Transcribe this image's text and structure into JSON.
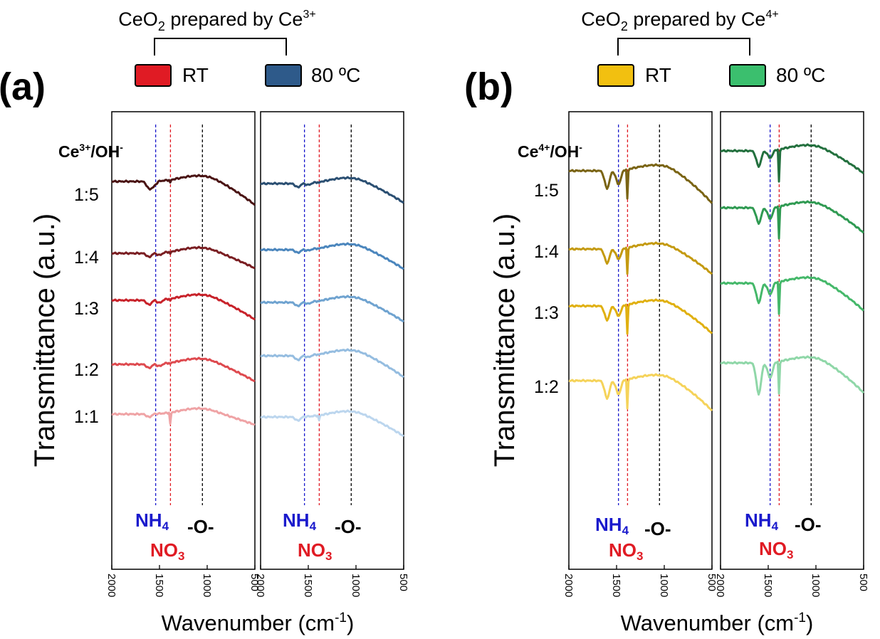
{
  "legend_a": {
    "title_main": "CeO",
    "title_sub": "2",
    "title_rest": " prepared by Ce",
    "title_sup": "3+",
    "items": [
      {
        "label": "RT",
        "color": "#e01b24"
      },
      {
        "label": "80 ºC",
        "color": "#2e5a8a"
      }
    ]
  },
  "legend_b": {
    "title_main": "CeO",
    "title_sub": "2",
    "title_rest": " prepared by Ce",
    "title_sup": "4+",
    "items": [
      {
        "label": "RT",
        "color": "#f2c010"
      },
      {
        "label": "80 ºC",
        "color": "#3bbf6e"
      }
    ]
  },
  "panel_a": {
    "letter": "(a)",
    "ratio_header_main": "Ce",
    "ratio_header_sup": "3+",
    "ratio_header_rest": "/OH",
    "ratio_header_sup2": "-",
    "ratios": [
      "1:5",
      "1:4",
      "1:3",
      "1:2",
      "1:1"
    ]
  },
  "panel_b": {
    "letter": "(b)",
    "ratio_header_main": "Ce",
    "ratio_header_sup": "4+",
    "ratio_header_rest": "/OH",
    "ratio_header_sup2": "-",
    "ratios": [
      "1:5",
      "1:4",
      "1:3",
      "1:2"
    ]
  },
  "peak_labels": {
    "nh4_main": "NH",
    "nh4_sub": "4",
    "no3_main": "NO",
    "no3_sub": "3",
    "oxo": "-O-",
    "nh4_color": "#1a1acc",
    "no3_color": "#e01b24",
    "oxo_color": "#000000"
  },
  "axes": {
    "ylabel": "Transmittance (a.u.)",
    "xlabel_main": "Wavenumber (cm",
    "xlabel_sup": "-1",
    "xlabel_end": ")",
    "xticks": [
      "2000",
      "1500",
      "1000",
      "500"
    ]
  },
  "chart_data": [
    {
      "type": "line",
      "panel": "a-left",
      "legend": "RT",
      "xlim": [
        2000,
        500
      ],
      "reference_lines": [
        {
          "x": 1540,
          "label": "NH4"
        },
        {
          "x": 1385,
          "label": "NO3"
        },
        {
          "x": 1050,
          "label": "-O-"
        }
      ],
      "series": [
        {
          "name": "1:5",
          "color": "#4a1414",
          "dips": [
            [
              1610,
              0.45
            ],
            [
              1560,
              0.3
            ],
            [
              1385,
              0.25
            ]
          ],
          "slope": 0.55
        },
        {
          "name": "1:4",
          "color": "#7a1e22",
          "dips": [
            [
              1610,
              0.25
            ],
            [
              1500,
              0.15
            ],
            [
              1385,
              0.2
            ]
          ],
          "slope": 0.35
        },
        {
          "name": "1:3",
          "color": "#c8222a",
          "dips": [
            [
              1610,
              0.3
            ],
            [
              1500,
              0.2
            ],
            [
              1385,
              0.2
            ]
          ],
          "slope": 0.45
        },
        {
          "name": "1:2",
          "color": "#de4a4f",
          "dips": [
            [
              1610,
              0.25
            ],
            [
              1500,
              0.15
            ],
            [
              1385,
              0.15
            ]
          ],
          "slope": 0.4
        },
        {
          "name": "1:1",
          "color": "#efa3a5",
          "dips": [
            [
              1610,
              0.2
            ],
            [
              1385,
              0.9
            ]
          ],
          "slope": 0.25
        }
      ]
    },
    {
      "type": "line",
      "panel": "a-right",
      "legend": "80 ºC",
      "xlim": [
        2000,
        500
      ],
      "reference_lines": [
        {
          "x": 1540,
          "label": "NH4"
        },
        {
          "x": 1385,
          "label": "NO3"
        },
        {
          "x": 1050,
          "label": "-O-"
        }
      ],
      "series": [
        {
          "name": "1:5",
          "color": "#2b4f72",
          "dips": [
            [
              1610,
              0.3
            ],
            [
              1500,
              0.15
            ],
            [
              1385,
              0.15
            ]
          ],
          "slope": 0.45
        },
        {
          "name": "1:4",
          "color": "#4b86bd",
          "dips": [
            [
              1610,
              0.25
            ],
            [
              1500,
              0.1
            ],
            [
              1385,
              0.1
            ]
          ],
          "slope": 0.45
        },
        {
          "name": "1:3",
          "color": "#6fa3d0",
          "dips": [
            [
              1610,
              0.3
            ],
            [
              1500,
              0.15
            ],
            [
              1385,
              0.1
            ]
          ],
          "slope": 0.45
        },
        {
          "name": "1:2",
          "color": "#95bde0",
          "dips": [
            [
              1610,
              0.35
            ],
            [
              1500,
              0.15
            ],
            [
              1385,
              0.1
            ]
          ],
          "slope": 0.5
        },
        {
          "name": "1:1",
          "color": "#bcd6ee",
          "dips": [
            [
              1610,
              0.3
            ],
            [
              1385,
              0.5
            ]
          ],
          "slope": 0.45
        }
      ]
    },
    {
      "type": "line",
      "panel": "b-left",
      "legend": "RT",
      "xlim": [
        2000,
        500
      ],
      "reference_lines": [
        {
          "x": 1480,
          "label": "NH4"
        },
        {
          "x": 1385,
          "label": "NO3"
        },
        {
          "x": 1050,
          "label": "-O-"
        }
      ],
      "series": [
        {
          "name": "1:5",
          "color": "#7a6414",
          "dips": [
            [
              1600,
              0.5
            ],
            [
              1480,
              0.4
            ],
            [
              1385,
              1.0
            ]
          ],
          "slope": 0.65
        },
        {
          "name": "1:4",
          "color": "#c49a10",
          "dips": [
            [
              1600,
              0.4
            ],
            [
              1480,
              0.3
            ],
            [
              1385,
              0.9
            ]
          ],
          "slope": 0.5
        },
        {
          "name": "1:3",
          "color": "#e0b010",
          "dips": [
            [
              1600,
              0.4
            ],
            [
              1480,
              0.3
            ],
            [
              1385,
              1.0
            ]
          ],
          "slope": 0.55
        },
        {
          "name": "1:2",
          "color": "#f5d35a",
          "dips": [
            [
              1600,
              0.5
            ],
            [
              1480,
              0.4
            ],
            [
              1385,
              1.0
            ]
          ],
          "slope": 0.6
        }
      ]
    },
    {
      "type": "line",
      "panel": "b-right",
      "legend": "80 ºC",
      "xlim": [
        2000,
        500
      ],
      "reference_lines": [
        {
          "x": 1480,
          "label": "NH4"
        },
        {
          "x": 1385,
          "label": "NO3"
        },
        {
          "x": 1050,
          "label": "-O-"
        }
      ],
      "series": [
        {
          "name": "1:5",
          "color": "#23703e",
          "dips": [
            [
              1600,
              0.4
            ],
            [
              1480,
              0.2
            ],
            [
              1385,
              1.0
            ]
          ],
          "slope": 0.45
        },
        {
          "name": "1:4",
          "color": "#2f9a52",
          "dips": [
            [
              1600,
              0.4
            ],
            [
              1480,
              0.3
            ],
            [
              1385,
              1.0
            ]
          ],
          "slope": 0.5
        },
        {
          "name": "1:3",
          "color": "#45b86a",
          "dips": [
            [
              1600,
              0.5
            ],
            [
              1480,
              0.3
            ],
            [
              1385,
              1.0
            ]
          ],
          "slope": 0.55
        },
        {
          "name": "1:2",
          "color": "#8fd7a8",
          "dips": [
            [
              1600,
              0.8
            ],
            [
              1480,
              0.4
            ],
            [
              1385,
              1.0
            ]
          ],
          "slope": 0.6
        }
      ]
    }
  ]
}
